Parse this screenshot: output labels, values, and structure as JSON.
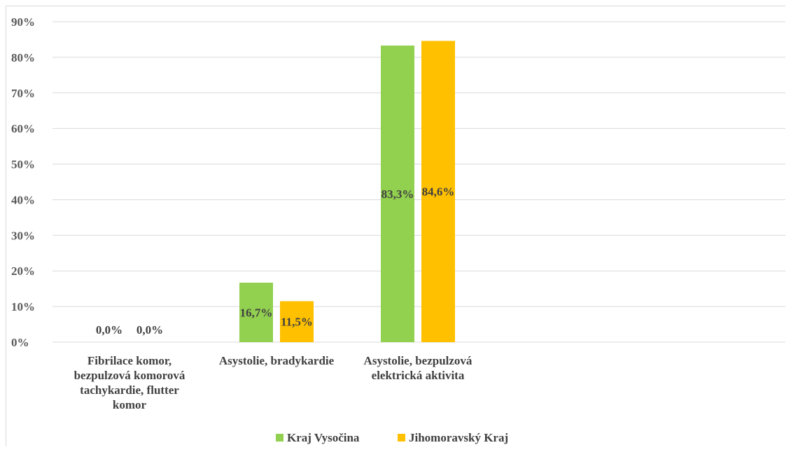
{
  "chart_data": {
    "type": "bar",
    "categories": [
      [
        "Fibrilace komor,",
        "bezpulzová komorová",
        "tachykardie, flutter",
        "komor"
      ],
      [
        "Asystolie, bradykardie"
      ],
      [
        "Asystolie, bezpulzová",
        "elektrická aktivita"
      ]
    ],
    "series": [
      {
        "name": "Kraj Vysočina",
        "color": "#92d050",
        "values": [
          0.0,
          16.7,
          83.3
        ],
        "labels": [
          "0,0%",
          "16,7%",
          "83,3%"
        ]
      },
      {
        "name": "Jihomoravský Kraj",
        "color": "#ffc000",
        "values": [
          0.0,
          11.5,
          84.6
        ],
        "labels": [
          "0,0%",
          "11,5%",
          "84,6%"
        ]
      }
    ],
    "yticks": [
      "0%",
      "10%",
      "20%",
      "30%",
      "40%",
      "50%",
      "60%",
      "70%",
      "80%",
      "90%"
    ],
    "ylim": [
      0,
      90
    ],
    "grid": true,
    "legend_position": "bottom",
    "title": "",
    "xlabel": "",
    "ylabel": ""
  }
}
